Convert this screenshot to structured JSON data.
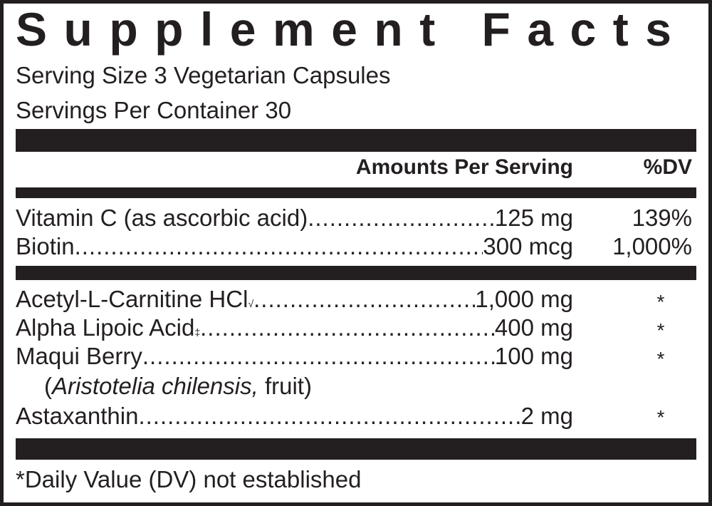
{
  "title": "Supplement Facts",
  "serving_size": "Serving Size 3 Vegetarian Capsules",
  "servings_per_container": "Servings Per Container 30",
  "header": {
    "amounts": "Amounts Per Serving",
    "dv": "%DV"
  },
  "nutrients": [
    {
      "name": "Vitamin C (as ascorbic acid)",
      "amount": "125 mg",
      "dv": "139%"
    },
    {
      "name": "Biotin",
      "amount": "300 mcg",
      "dv": "1,000%"
    }
  ],
  "ingredients": [
    {
      "name": "Acetyl-L-Carnitine HCl",
      "mark": "√",
      "amount": "1,000 mg",
      "dv": "*"
    },
    {
      "name": "Alpha Lipoic Acid",
      "mark": "‡",
      "amount": "400 mg",
      "dv": "*"
    },
    {
      "name": "Maqui Berry",
      "amount": "100 mg",
      "dv": "*",
      "source_pre": "(",
      "source_italic": "Aristotelia chilensis,",
      "source_post": " fruit)"
    },
    {
      "name": "Astaxanthin",
      "amount": "2 mg",
      "dv": "*"
    }
  ],
  "footnote": "*Daily Value (DV) not established"
}
